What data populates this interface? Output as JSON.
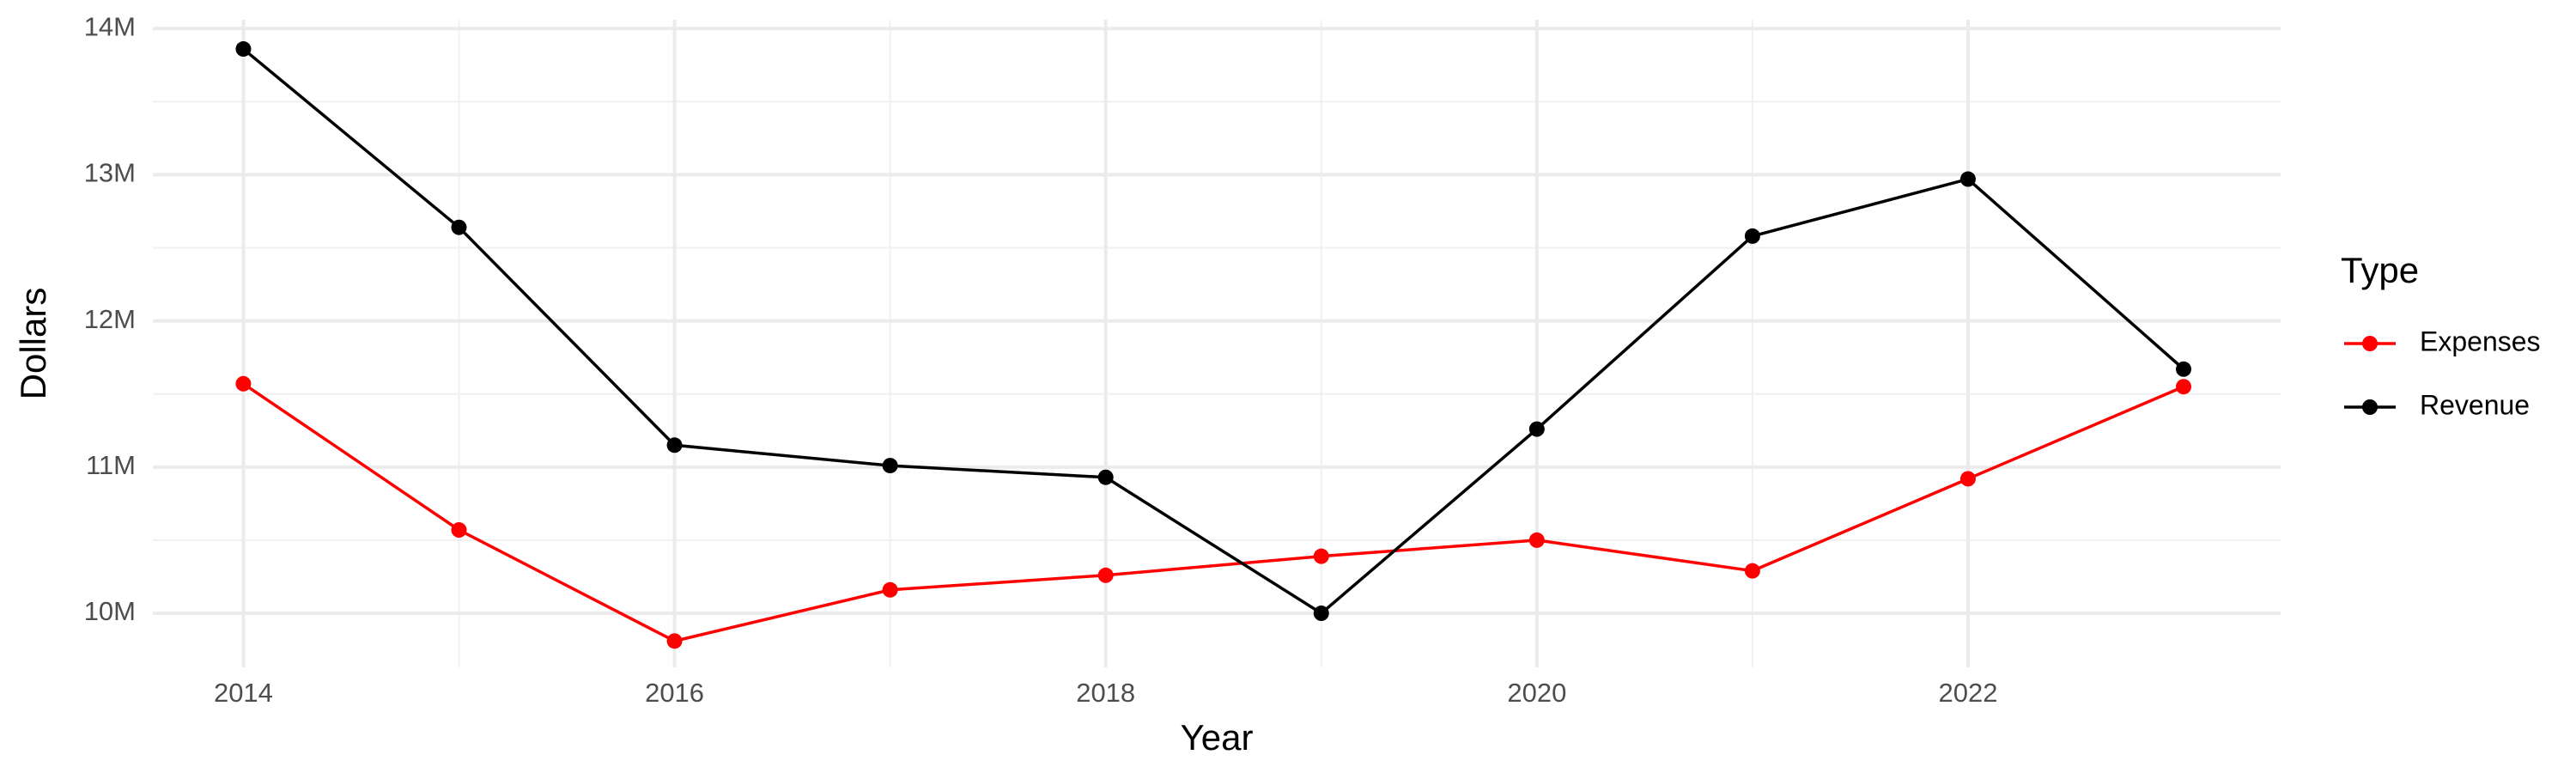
{
  "chart_data": {
    "type": "line",
    "x_label": "Year",
    "y_label": "Dollars",
    "legend_title": "Type",
    "legend_position": "right",
    "grid": true,
    "x": [
      2014,
      2015,
      2016,
      2017,
      2018,
      2019,
      2020,
      2021,
      2022,
      2023
    ],
    "series": [
      {
        "name": "Expenses",
        "color": "#ff0000",
        "values": [
          11570000,
          10570000,
          9810000,
          10160000,
          10260000,
          10390000,
          10500000,
          10290000,
          10920000,
          11550000
        ]
      },
      {
        "name": "Revenue",
        "color": "#000000",
        "values": [
          13860000,
          12640000,
          11150000,
          11010000,
          10930000,
          10000000,
          11260000,
          12580000,
          12970000,
          11670000
        ]
      }
    ],
    "xlim": [
      2013.58,
      2023.45
    ],
    "xticks": [
      2014,
      2016,
      2018,
      2020,
      2022
    ],
    "ylim": [
      9630000,
      14060000
    ],
    "yticks": [
      {
        "value": 10000000,
        "label": "10M"
      },
      {
        "value": 11000000,
        "label": "11M"
      },
      {
        "value": 12000000,
        "label": "12M"
      },
      {
        "value": 13000000,
        "label": "13M"
      },
      {
        "value": 14000000,
        "label": "14M"
      }
    ]
  }
}
